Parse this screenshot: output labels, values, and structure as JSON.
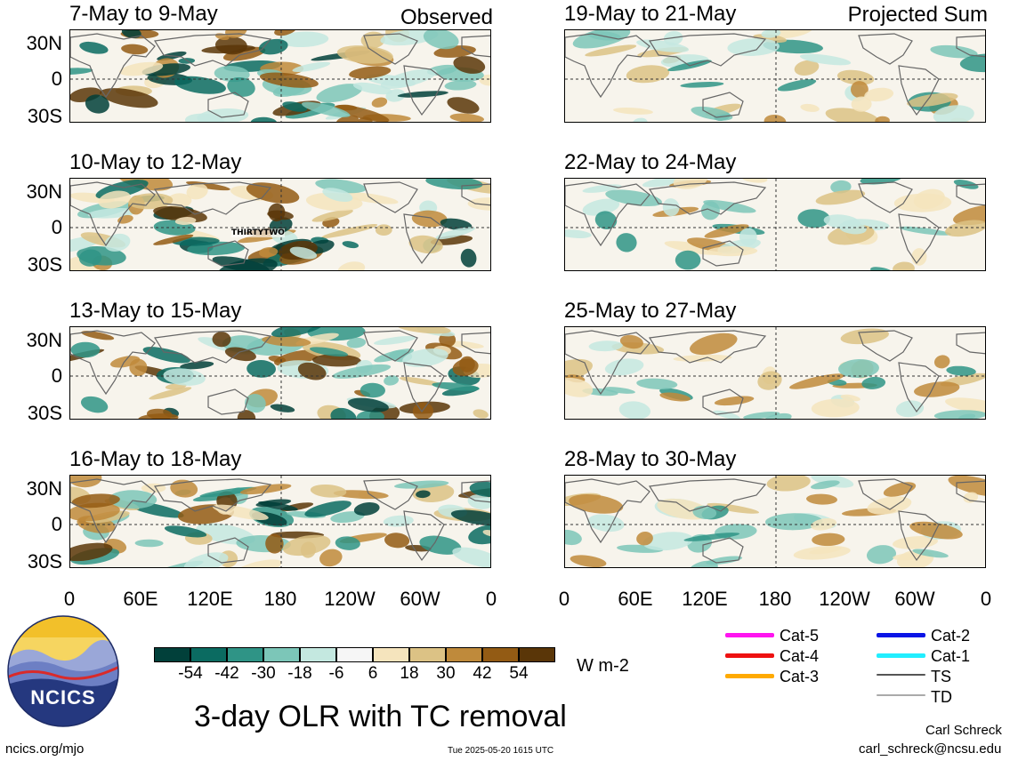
{
  "left_header": "Observed",
  "right_header": "Projected Sum",
  "panels_left": [
    {
      "title": "7-May to 9-May"
    },
    {
      "title": "10-May to 12-May",
      "storm_label": "THIRTYTWO"
    },
    {
      "title": "13-May to 15-May"
    },
    {
      "title": "16-May to 18-May"
    }
  ],
  "panels_right": [
    {
      "title": "19-May to 21-May"
    },
    {
      "title": "22-May to 24-May"
    },
    {
      "title": "25-May to 27-May"
    },
    {
      "title": "28-May to 30-May"
    }
  ],
  "lat_labels": [
    "30N",
    "0",
    "30S"
  ],
  "lon_labels": [
    "0",
    "60E",
    "120E",
    "180",
    "120W",
    "60W",
    "0"
  ],
  "colorbar": {
    "ticks": [
      "-54",
      "-42",
      "-30",
      "-18",
      "-6",
      "6",
      "18",
      "30",
      "42",
      "54"
    ],
    "colors": [
      "#01403a",
      "#0b6b61",
      "#2f9486",
      "#7cc6b8",
      "#c4e8e0",
      "#f6f6f6",
      "#f5e4bd",
      "#dcc285",
      "#bf8a3b",
      "#935b14",
      "#5a3608"
    ],
    "unit": "W m-2"
  },
  "legend": [
    {
      "label": "Cat-5",
      "color": "#ff14f0"
    },
    {
      "label": "Cat-4",
      "color": "#ee1111"
    },
    {
      "label": "Cat-3",
      "color": "#ffaa00"
    },
    {
      "label": "Cat-2",
      "color": "#0a14e6"
    },
    {
      "label": "Cat-1",
      "color": "#22eeff"
    },
    {
      "label": "TS",
      "color": "#555555"
    },
    {
      "label": "TD",
      "color": "#aaaaaa"
    }
  ],
  "logo_text": "NCICS",
  "main_title": "3-day OLR with TC removal",
  "footer": {
    "url": "ncics.org/mjo",
    "timestamp": "Tue 2025-05-20 1615 UTC",
    "author": "Carl Schreck",
    "email": "carl_schreck@ncsu.edu"
  }
}
